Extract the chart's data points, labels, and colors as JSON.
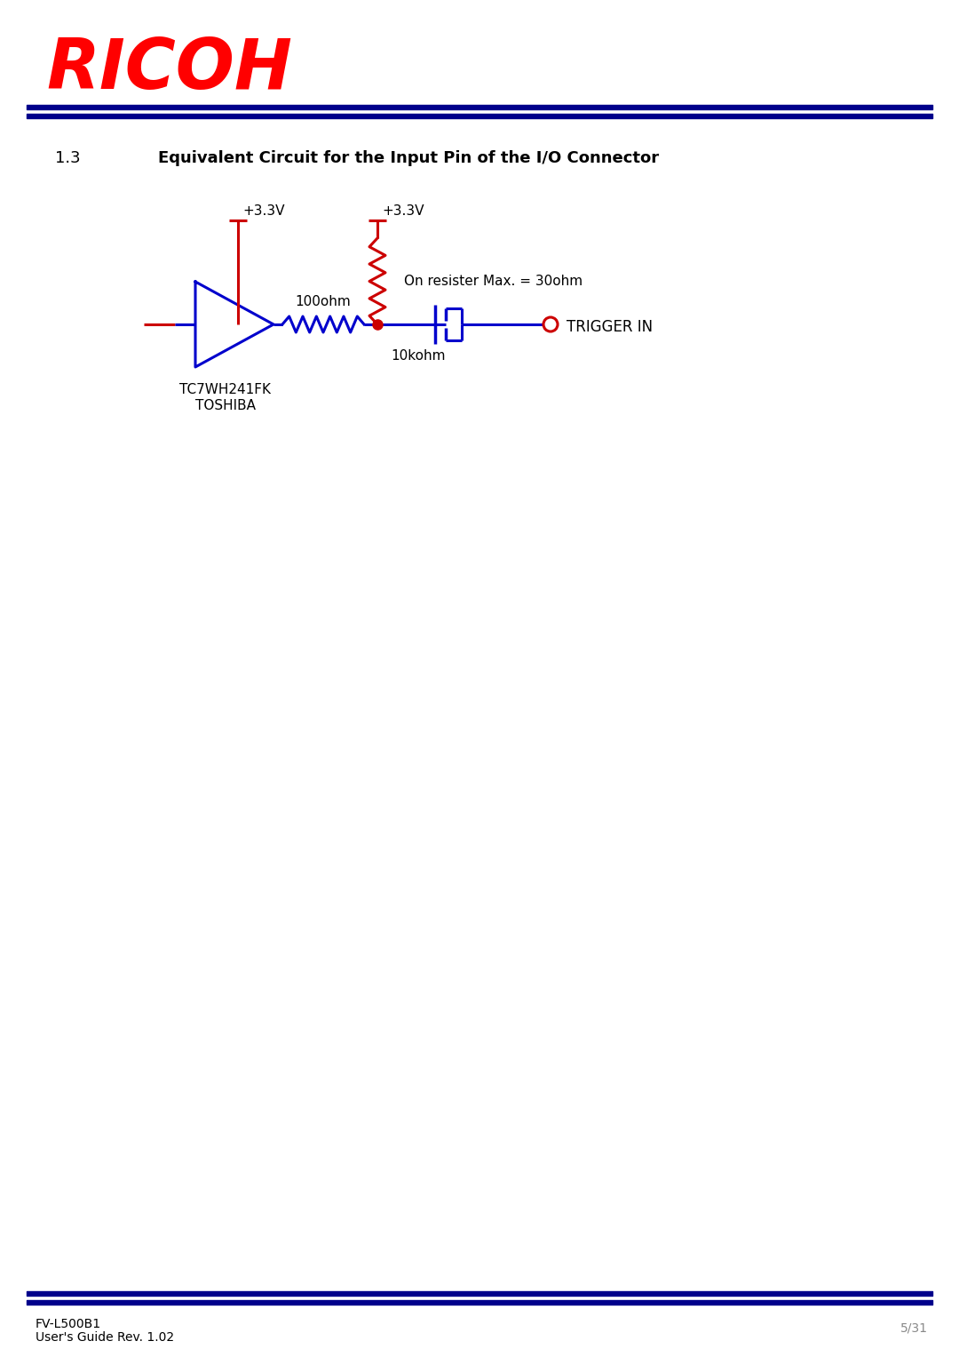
{
  "title": "Equivalent Circuit for the Input Pin of the I/O Connector",
  "section": "1.3",
  "page_line1": "FV-L500B1",
  "page_line2": "User's Guide Rev. 1.02",
  "page_number": "5/31",
  "ricoh_color": "#FF0000",
  "circuit_blue": "#0000CC",
  "circuit_red": "#CC0000",
  "header_bar_color": "#00008B",
  "footer_bar_color": "#00008B",
  "bg_color": "#FFFFFF",
  "footer_text_color": "#888888",
  "vcc1_label": "+3.3V",
  "vcc2_label": "+3.3V",
  "r1_label": "100ohm",
  "r2_label": "10kohm",
  "on_res_label": "On resister Max. = 30ohm",
  "trigger_label": "TRIGGER IN",
  "ic_label1": "TC7WH241FK",
  "ic_label2": "TOSHIBA"
}
